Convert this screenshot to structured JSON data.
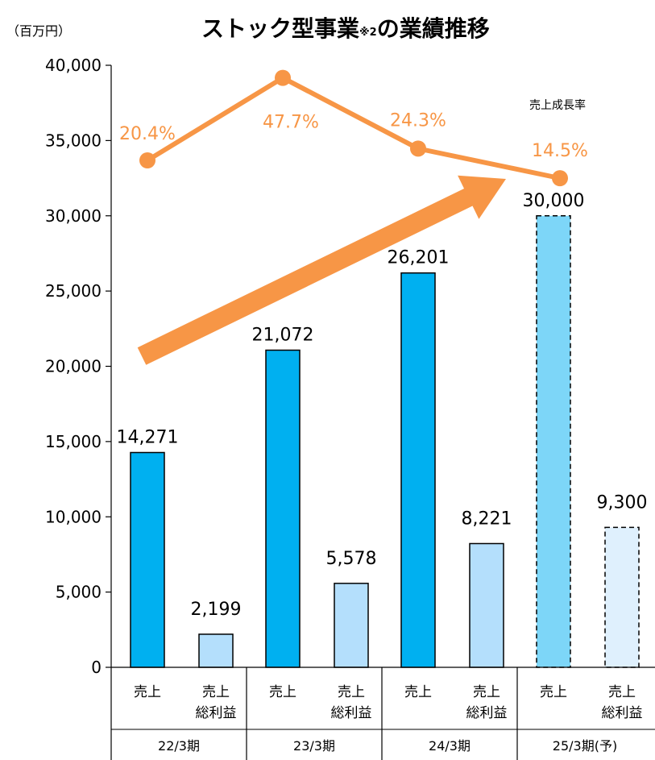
{
  "chart_data": {
    "type": "bar",
    "title": "ストック型事業",
    "title_note": "※2",
    "title_suffix": "の業績推移",
    "unit_label": "（百万円）",
    "ylim": [
      0,
      40000
    ],
    "yticks": [
      "0",
      "5,000",
      "10,000",
      "15,000",
      "20,000",
      "25,000",
      "30,000",
      "35,000",
      "40,000"
    ],
    "periods": [
      "22/3期",
      "23/3期",
      "24/3期",
      "25/3期(予)"
    ],
    "sales_label": "売上",
    "profit_label_line1": "売上",
    "profit_label_line2": "総利益",
    "series": [
      {
        "name": "売上",
        "values": [
          14271,
          21072,
          26201,
          30000
        ],
        "labels": [
          "14,271",
          "21,072",
          "26,201",
          "30,000"
        ]
      },
      {
        "name": "売上総利益",
        "values": [
          2199,
          5578,
          8221,
          9300
        ],
        "labels": [
          "2,199",
          "5,578",
          "8,221",
          "9,300"
        ]
      }
    ],
    "growth_rate": {
      "label": "売上成長率",
      "values": [
        20.4,
        47.7,
        24.3,
        14.5
      ],
      "labels": [
        "20.4%",
        "47.7%",
        "24.3%",
        "14.5%"
      ]
    },
    "forecast_period_index": 3,
    "colors": {
      "sales": "#00b0f0",
      "profit": "#b4dffc",
      "sales_forecast": "#7dd6f8",
      "profit_forecast": "#dff0fd",
      "growth": "#f79646",
      "text": "#000000"
    }
  }
}
